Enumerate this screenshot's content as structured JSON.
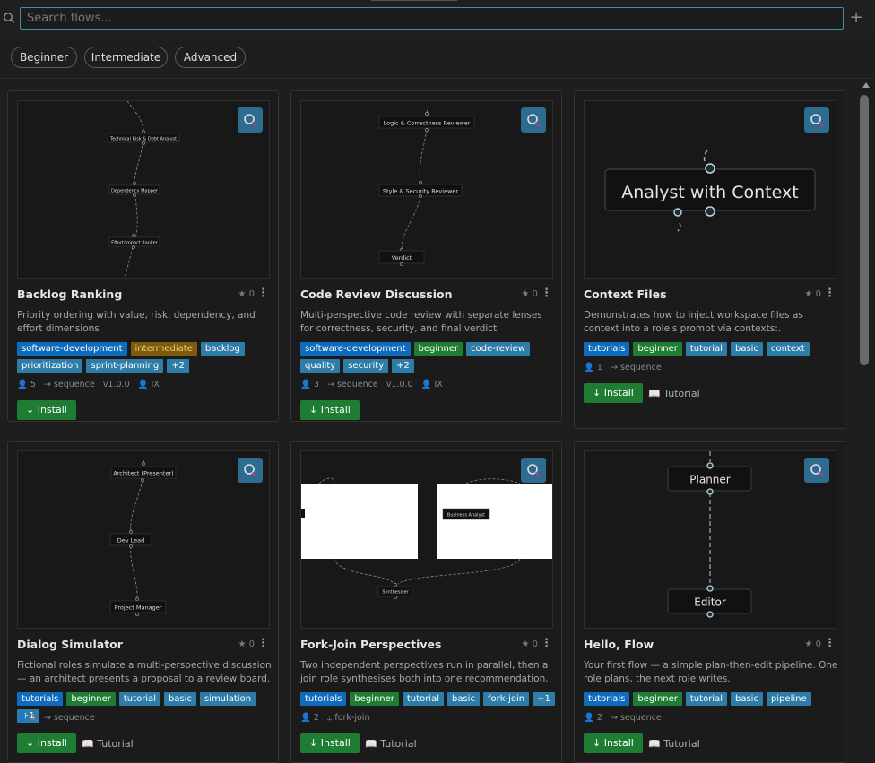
{
  "search": {
    "placeholder": "Search flows..."
  },
  "add_label": "+",
  "filters": [
    "Beginner",
    "Intermediate",
    "Advanced"
  ],
  "install_label": "↓ Install",
  "tutorial_label": "Tutorial",
  "cards": [
    {
      "title": "Backlog Ranking",
      "stars": "0",
      "description": "Priority ordering with value, risk, dependency, and effort dimensions",
      "tags": [
        {
          "label": "software-development",
          "color": "blue"
        },
        {
          "label": "intermediate",
          "color": "orange"
        },
        {
          "label": "backlog",
          "color": "teal"
        },
        {
          "label": "prioritization",
          "color": "teal"
        },
        {
          "label": "sprint-planning",
          "color": "teal"
        },
        {
          "label": "+2",
          "color": "teal"
        }
      ],
      "roles": "5",
      "topology": "→ sequence",
      "version": "v1.0.0",
      "author": "IX",
      "has_tutorial": false,
      "preview_nodes": [
        "Technical Risk & Debt Analyst",
        "Dependency Mapper",
        "Effort/Impact Ranker"
      ]
    },
    {
      "title": "Code Review Discussion",
      "stars": "0",
      "description": "Multi-perspective code review with separate lenses for correctness, security, and final verdict",
      "tags": [
        {
          "label": "software-development",
          "color": "blue"
        },
        {
          "label": "beginner",
          "color": "green"
        },
        {
          "label": "code-review",
          "color": "teal"
        },
        {
          "label": "quality",
          "color": "teal"
        },
        {
          "label": "security",
          "color": "teal"
        },
        {
          "label": "+2",
          "color": "teal"
        }
      ],
      "roles": "3",
      "topology": "→ sequence",
      "version": "v1.0.0",
      "author": "IX",
      "has_tutorial": false,
      "preview_nodes": [
        "Logic & Correctness Reviewer",
        "Style & Security Reviewer",
        "Verdict"
      ]
    },
    {
      "title": "Context Files",
      "stars": "0",
      "description": "Demonstrates how to inject workspace files as context into a role's prompt via contexts:.",
      "tags": [
        {
          "label": "tutorials",
          "color": "blue"
        },
        {
          "label": "beginner",
          "color": "green"
        },
        {
          "label": "tutorial",
          "color": "teal"
        },
        {
          "label": "basic",
          "color": "teal"
        },
        {
          "label": "context",
          "color": "teal"
        }
      ],
      "roles": "1",
      "topology": "→ sequence",
      "version": "",
      "author": "",
      "has_tutorial": true,
      "preview_nodes": [
        "Analyst with Context"
      ]
    },
    {
      "title": "Dialog Simulator",
      "stars": "0",
      "description": "Fictional roles simulate a multi-perspective discussion — an architect presents a proposal to a review board.",
      "tags": [
        {
          "label": "tutorials",
          "color": "blue"
        },
        {
          "label": "beginner",
          "color": "green"
        },
        {
          "label": "tutorial",
          "color": "teal"
        },
        {
          "label": "basic",
          "color": "teal"
        },
        {
          "label": "simulation",
          "color": "teal"
        },
        {
          "label": "+1",
          "color": "teal"
        }
      ],
      "roles": "3",
      "topology": "→ sequence",
      "version": "",
      "author": "",
      "has_tutorial": true,
      "preview_nodes": [
        "Architect (Presenter)",
        "Dev Lead",
        "Project Manager"
      ]
    },
    {
      "title": "Fork-Join Perspectives",
      "stars": "0",
      "description": "Two independent perspectives run in parallel, then a join role synthesises both into one recommendation.",
      "tags": [
        {
          "label": "tutorials",
          "color": "blue"
        },
        {
          "label": "beginner",
          "color": "green"
        },
        {
          "label": "tutorial",
          "color": "teal"
        },
        {
          "label": "basic",
          "color": "teal"
        },
        {
          "label": "fork-join",
          "color": "teal"
        },
        {
          "label": "+1",
          "color": "teal"
        }
      ],
      "roles": "2",
      "topology": "⥿ fork-join",
      "version": "",
      "author": "",
      "has_tutorial": true,
      "preview_nodes": [
        "Business Analyst",
        "Synthesiser"
      ]
    },
    {
      "title": "Hello, Flow",
      "stars": "0",
      "description": "Your first flow — a simple plan-then-edit pipeline. One role plans, the next role writes.",
      "tags": [
        {
          "label": "tutorials",
          "color": "blue"
        },
        {
          "label": "beginner",
          "color": "green"
        },
        {
          "label": "tutorial",
          "color": "teal"
        },
        {
          "label": "basic",
          "color": "teal"
        },
        {
          "label": "pipeline",
          "color": "teal"
        }
      ],
      "roles": "2",
      "topology": "→ sequence",
      "version": "",
      "author": "",
      "has_tutorial": true,
      "preview_nodes": [
        "Planner",
        "Editor"
      ]
    }
  ]
}
